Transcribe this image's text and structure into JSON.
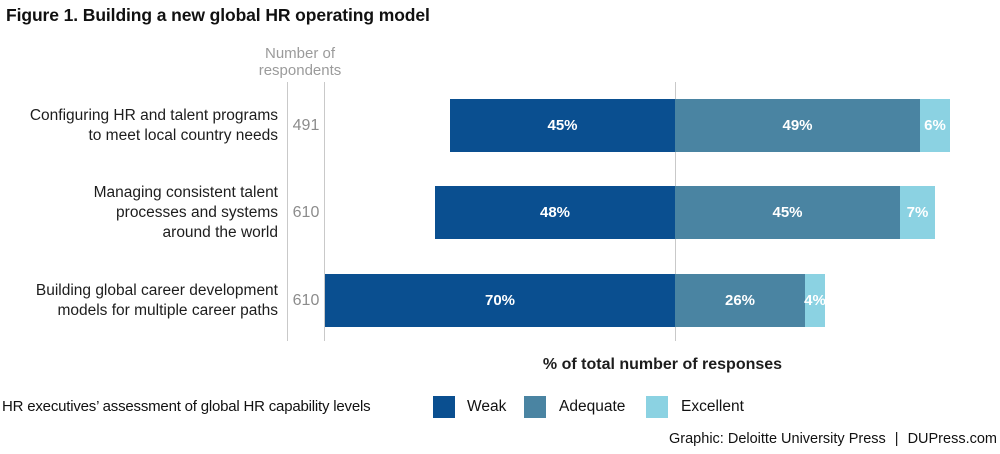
{
  "title": "Figure 1. Building a new global HR operating model",
  "chart_data": {
    "type": "bar",
    "orientation": "horizontal-stacked",
    "alignment": "all bars share a common vertical line at the Weak/Adequate segment boundary",
    "grid": "three vertical gridlines: two flanking respondents column, one at segment boundary",
    "respondents_header": "Number of\nrespondents",
    "categories": [
      "Configuring HR and talent programs\nto meet local country needs",
      "Managing consistent talent\nprocesses and systems\naround the world",
      "Building global career development\nmodels for multiple career paths"
    ],
    "respondents": [
      "491",
      "610",
      "610"
    ],
    "series": [
      {
        "name": "Weak",
        "color": "#0a4f90",
        "values": [
          45,
          48,
          70
        ]
      },
      {
        "name": "Adequate",
        "color": "#4a84a2",
        "values": [
          49,
          45,
          26
        ]
      },
      {
        "name": "Excellent",
        "color": "#8bd2e2",
        "values": [
          6,
          7,
          4
        ]
      }
    ],
    "value_suffix": "%",
    "xlabel": "% of total number of responses",
    "xlim_percent": [
      0,
      100
    ]
  },
  "legend": {
    "title": "HR executives’ assessment of global HR capability levels"
  },
  "footer": {
    "credit": "Graphic: Deloitte University Press",
    "separator": "|",
    "site": "DUPress.com"
  },
  "colors": {
    "gridline": "#c9c9c9",
    "muted_text": "#9b9b9b"
  }
}
